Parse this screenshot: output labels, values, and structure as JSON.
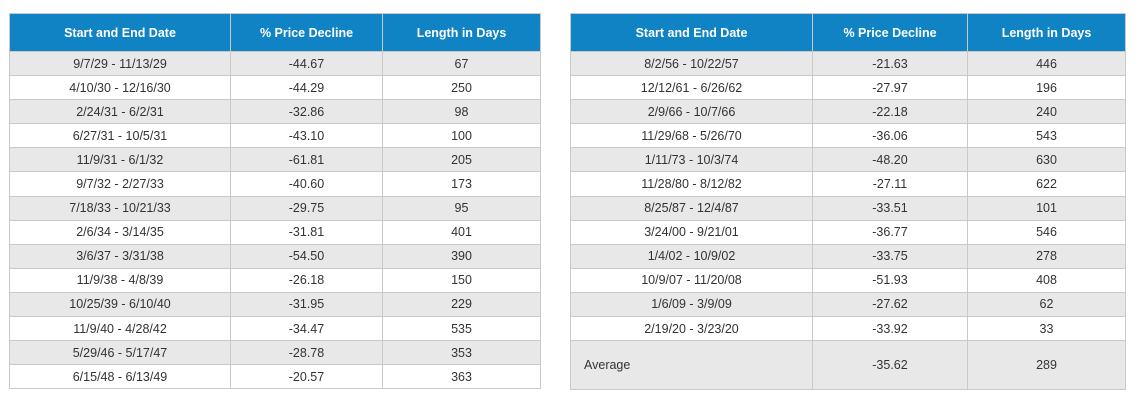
{
  "left_table": {
    "headers": [
      "Start and End Date",
      "% Price Decline",
      "Length in Days"
    ],
    "rows": [
      [
        "9/7/29 - 11/13/29",
        "-44.67",
        "67"
      ],
      [
        "4/10/30 - 12/16/30",
        "-44.29",
        "250"
      ],
      [
        "2/24/31 - 6/2/31",
        "-32.86",
        "98"
      ],
      [
        "6/27/31 - 10/5/31",
        "-43.10",
        "100"
      ],
      [
        "11/9/31 - 6/1/32",
        "-61.81",
        "205"
      ],
      [
        "9/7/32 - 2/27/33",
        "-40.60",
        "173"
      ],
      [
        "7/18/33 - 10/21/33",
        "-29.75",
        "95"
      ],
      [
        "2/6/34 - 3/14/35",
        "-31.81",
        "401"
      ],
      [
        "3/6/37 - 3/31/38",
        "-54.50",
        "390"
      ],
      [
        "11/9/38 - 4/8/39",
        "-26.18",
        "150"
      ],
      [
        "10/25/39 - 6/10/40",
        "-31.95",
        "229"
      ],
      [
        "11/9/40 - 4/28/42",
        "-34.47",
        "535"
      ],
      [
        "5/29/46 - 5/17/47",
        "-28.78",
        "353"
      ],
      [
        "6/15/48 - 6/13/49",
        "-20.57",
        "363"
      ]
    ]
  },
  "right_table": {
    "headers": [
      "Start and End Date",
      "% Price Decline",
      "Length in Days"
    ],
    "rows": [
      [
        "8/2/56 - 10/22/57",
        "-21.63",
        "446"
      ],
      [
        "12/12/61 - 6/26/62",
        "-27.97",
        "196"
      ],
      [
        "2/9/66 - 10/7/66",
        "-22.18",
        "240"
      ],
      [
        "11/29/68 - 5/26/70",
        "-36.06",
        "543"
      ],
      [
        "1/11/73 - 10/3/74",
        "-48.20",
        "630"
      ],
      [
        "11/28/80 - 8/12/82",
        "-27.11",
        "622"
      ],
      [
        "8/25/87 - 12/4/87",
        "-33.51",
        "101"
      ],
      [
        "3/24/00 - 9/21/01",
        "-36.77",
        "546"
      ],
      [
        "1/4/02 - 10/9/02",
        "-33.75",
        "278"
      ],
      [
        "10/9/07 - 11/20/08",
        "-51.93",
        "408"
      ],
      [
        "1/6/09 - 3/9/09",
        "-27.62",
        "62"
      ],
      [
        "2/19/20 - 3/23/20",
        "-33.92",
        "33"
      ]
    ],
    "average": {
      "label": "Average",
      "decline": "-35.62",
      "days": "289"
    }
  },
  "colors": {
    "header_bg": "#1083c5",
    "header_text": "#ffffff",
    "stripe": "#e8e8e8",
    "border": "#c9c9c9"
  }
}
